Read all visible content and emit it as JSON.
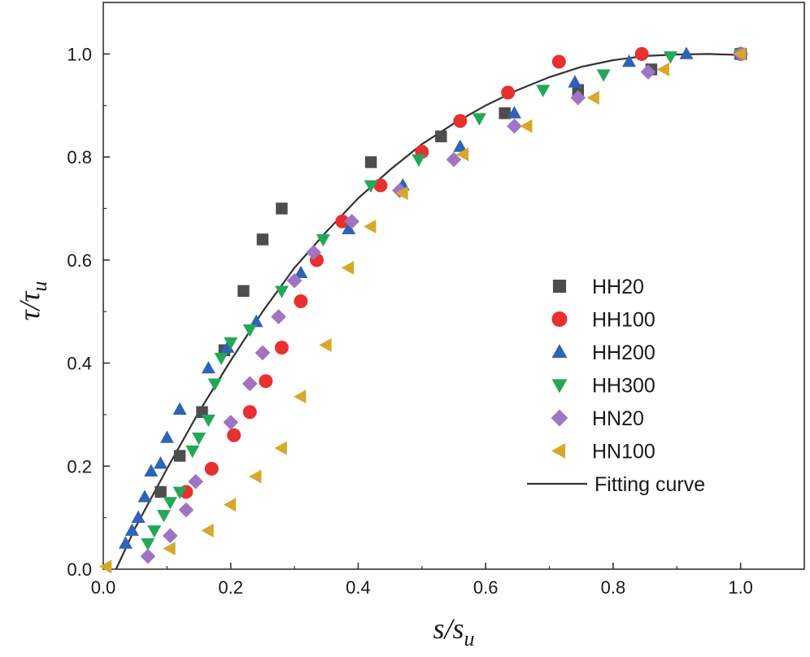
{
  "chart_data": {
    "type": "scatter",
    "xlabel": "s/s_u",
    "ylabel": "τ/τ_u",
    "xlabel_main": "s/s",
    "xlabel_sub": "u",
    "ylabel_main": "τ/τ",
    "ylabel_sub": "u",
    "xlim": [
      0.0,
      1.1
    ],
    "ylim": [
      0.0,
      1.1
    ],
    "xticks": [
      0.0,
      0.2,
      0.4,
      0.6,
      0.8,
      1.0
    ],
    "yticks": [
      0.0,
      0.2,
      0.4,
      0.6,
      0.8,
      1.0
    ],
    "xtick_labels": [
      "0.0",
      "0.2",
      "0.4",
      "0.6",
      "0.8",
      "1.0"
    ],
    "ytick_labels": [
      "0.0",
      "0.2",
      "0.4",
      "0.6",
      "0.8",
      "1.0"
    ],
    "legend_position": "right-middle",
    "series": [
      {
        "name": "HH20",
        "marker": "square",
        "color": "#4d4d4d",
        "points": [
          [
            0.09,
            0.15
          ],
          [
            0.12,
            0.22
          ],
          [
            0.155,
            0.305
          ],
          [
            0.19,
            0.425
          ],
          [
            0.22,
            0.54
          ],
          [
            0.25,
            0.64
          ],
          [
            0.28,
            0.7
          ],
          [
            0.42,
            0.79
          ],
          [
            0.53,
            0.84
          ],
          [
            0.63,
            0.885
          ],
          [
            0.745,
            0.93
          ],
          [
            0.86,
            0.97
          ],
          [
            1.0,
            1.0
          ]
        ]
      },
      {
        "name": "HH100",
        "marker": "circle",
        "color": "#e8302f",
        "points": [
          [
            0.13,
            0.15
          ],
          [
            0.17,
            0.195
          ],
          [
            0.205,
            0.26
          ],
          [
            0.23,
            0.305
          ],
          [
            0.255,
            0.365
          ],
          [
            0.28,
            0.43
          ],
          [
            0.31,
            0.52
          ],
          [
            0.335,
            0.6
          ],
          [
            0.375,
            0.675
          ],
          [
            0.435,
            0.745
          ],
          [
            0.5,
            0.81
          ],
          [
            0.56,
            0.87
          ],
          [
            0.635,
            0.925
          ],
          [
            0.715,
            0.985
          ],
          [
            0.845,
            1.0
          ],
          [
            1.0,
            1.0
          ]
        ]
      },
      {
        "name": "HH200",
        "marker": "triangle-up",
        "color": "#2e63b8",
        "points": [
          [
            0.035,
            0.05
          ],
          [
            0.045,
            0.075
          ],
          [
            0.055,
            0.1
          ],
          [
            0.065,
            0.14
          ],
          [
            0.075,
            0.19
          ],
          [
            0.09,
            0.205
          ],
          [
            0.1,
            0.255
          ],
          [
            0.12,
            0.31
          ],
          [
            0.165,
            0.39
          ],
          [
            0.195,
            0.43
          ],
          [
            0.24,
            0.48
          ],
          [
            0.31,
            0.575
          ],
          [
            0.385,
            0.66
          ],
          [
            0.47,
            0.745
          ],
          [
            0.56,
            0.82
          ],
          [
            0.645,
            0.885
          ],
          [
            0.74,
            0.945
          ],
          [
            0.825,
            0.985
          ],
          [
            0.915,
            1.0
          ],
          [
            1.0,
            1.0
          ]
        ]
      },
      {
        "name": "HH300",
        "marker": "triangle-down",
        "color": "#23a85a",
        "points": [
          [
            0.07,
            0.05
          ],
          [
            0.08,
            0.075
          ],
          [
            0.095,
            0.105
          ],
          [
            0.105,
            0.13
          ],
          [
            0.12,
            0.15
          ],
          [
            0.14,
            0.23
          ],
          [
            0.15,
            0.255
          ],
          [
            0.165,
            0.29
          ],
          [
            0.175,
            0.36
          ],
          [
            0.185,
            0.41
          ],
          [
            0.2,
            0.44
          ],
          [
            0.23,
            0.465
          ],
          [
            0.28,
            0.54
          ],
          [
            0.345,
            0.64
          ],
          [
            0.42,
            0.745
          ],
          [
            0.495,
            0.795
          ],
          [
            0.59,
            0.875
          ],
          [
            0.69,
            0.93
          ],
          [
            0.785,
            0.96
          ],
          [
            0.89,
            0.995
          ],
          [
            1.0,
            1.0
          ]
        ]
      },
      {
        "name": "HN20",
        "marker": "diamond",
        "color": "#a074c4",
        "points": [
          [
            0.07,
            0.025
          ],
          [
            0.105,
            0.065
          ],
          [
            0.13,
            0.115
          ],
          [
            0.145,
            0.17
          ],
          [
            0.2,
            0.285
          ],
          [
            0.23,
            0.36
          ],
          [
            0.25,
            0.42
          ],
          [
            0.275,
            0.49
          ],
          [
            0.3,
            0.56
          ],
          [
            0.33,
            0.615
          ],
          [
            0.39,
            0.675
          ],
          [
            0.465,
            0.735
          ],
          [
            0.55,
            0.795
          ],
          [
            0.645,
            0.86
          ],
          [
            0.745,
            0.915
          ],
          [
            0.855,
            0.965
          ],
          [
            1.0,
            1.0
          ]
        ]
      },
      {
        "name": "HN100",
        "marker": "triangle-left",
        "color": "#d5a92a",
        "points": [
          [
            0.005,
            0.005
          ],
          [
            0.105,
            0.04
          ],
          [
            0.165,
            0.075
          ],
          [
            0.2,
            0.125
          ],
          [
            0.24,
            0.18
          ],
          [
            0.28,
            0.235
          ],
          [
            0.31,
            0.335
          ],
          [
            0.35,
            0.435
          ],
          [
            0.385,
            0.585
          ],
          [
            0.42,
            0.665
          ],
          [
            0.47,
            0.73
          ],
          [
            0.565,
            0.805
          ],
          [
            0.665,
            0.86
          ],
          [
            0.77,
            0.915
          ],
          [
            0.88,
            0.97
          ],
          [
            1.0,
            1.0
          ]
        ]
      }
    ],
    "fit": {
      "name": "Fitting curve",
      "color": "#333333",
      "points": [
        [
          0.02,
          0.0
        ],
        [
          0.05,
          0.08
        ],
        [
          0.1,
          0.195
        ],
        [
          0.15,
          0.305
        ],
        [
          0.2,
          0.405
        ],
        [
          0.25,
          0.5
        ],
        [
          0.3,
          0.585
        ],
        [
          0.35,
          0.655
        ],
        [
          0.4,
          0.72
        ],
        [
          0.45,
          0.775
        ],
        [
          0.5,
          0.825
        ],
        [
          0.55,
          0.865
        ],
        [
          0.6,
          0.9
        ],
        [
          0.65,
          0.93
        ],
        [
          0.7,
          0.955
        ],
        [
          0.75,
          0.975
        ],
        [
          0.8,
          0.988
        ],
        [
          0.85,
          0.996
        ],
        [
          0.9,
          0.999
        ],
        [
          0.95,
          1.0
        ],
        [
          1.0,
          0.998
        ]
      ]
    }
  }
}
